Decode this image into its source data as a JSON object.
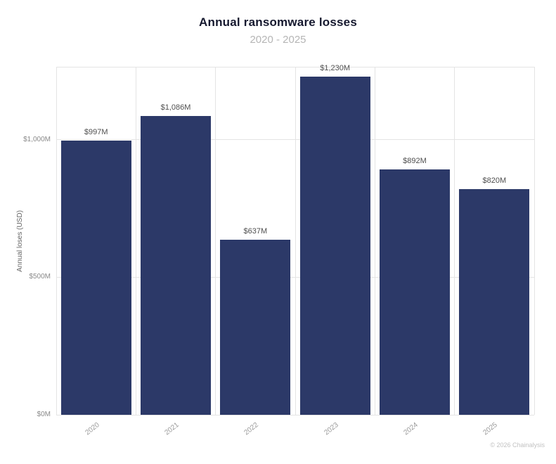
{
  "chart_data": {
    "type": "bar",
    "title": "Annual ransomware losses",
    "subtitle": "2020 - 2025",
    "categories": [
      "2020",
      "2021",
      "2022",
      "2023",
      "2024",
      "2025"
    ],
    "values": [
      997,
      1086,
      637,
      1230,
      892,
      820
    ],
    "value_labels": [
      "$997M",
      "$1,086M",
      "$637M",
      "$1,230M",
      "$892M",
      "$820M"
    ],
    "xlabel": "",
    "ylabel": "Annual loses (USD)",
    "yticks": [
      {
        "value": 0,
        "label": "$0M"
      },
      {
        "value": 500,
        "label": "$500M"
      },
      {
        "value": 1000,
        "label": "$1,000M"
      }
    ],
    "ylim": [
      0,
      1265
    ],
    "bar_color": "#2c3968",
    "grid": true,
    "legend": "none"
  },
  "footer": {
    "credit": "© 2026 Chainalysis"
  }
}
